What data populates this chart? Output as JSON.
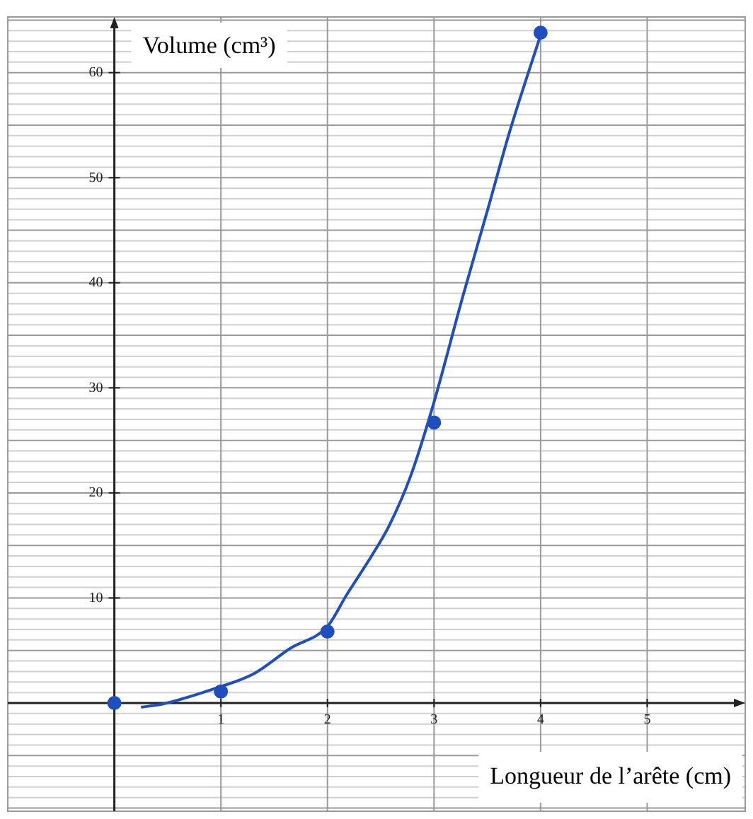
{
  "chart_data": {
    "type": "line",
    "xlabel": "Longueur de l’arête (cm)",
    "ylabel": "Volume (cm³)",
    "xlim": [
      -1,
      5.92
    ],
    "ylim": [
      -10.3,
      65.3
    ],
    "xticks": [
      1,
      2,
      3,
      4,
      5
    ],
    "yticks": [
      10,
      20,
      30,
      40,
      50,
      60
    ],
    "grid": true,
    "legend": false,
    "line_style": "solid",
    "series": [
      {
        "type": "line",
        "color": "#1f4fbf",
        "marker": "none",
        "x": [
          0.25,
          0.45,
          0.98,
          1.31,
          1.65,
          2.0,
          2.18,
          2.42,
          2.58,
          2.78,
          2.99,
          3.27,
          3.51,
          3.71,
          4.01
        ],
        "values": [
          -0.4,
          -0.1,
          1.5,
          2.8,
          5.2,
          7.3,
          10.3,
          14.1,
          16.9,
          21.6,
          28.3,
          38.7,
          47.2,
          54.4,
          63.9
        ]
      },
      {
        "type": "scatter",
        "color": "#1f4fbf",
        "marker": "circle",
        "x": [
          0,
          1,
          2,
          3,
          4
        ],
        "values": [
          0,
          1.1,
          6.8,
          26.7,
          63.8
        ]
      }
    ]
  }
}
